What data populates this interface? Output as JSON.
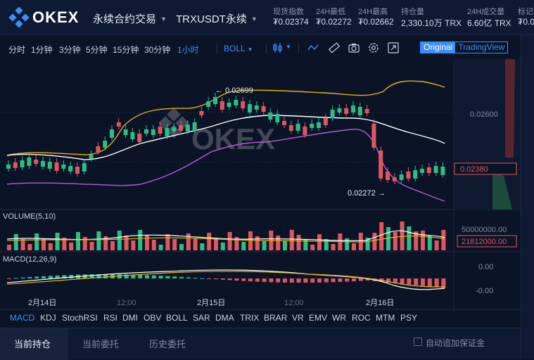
{
  "header": {
    "brand": "OKEX",
    "market_type": "永续合约交易",
    "pair": "TRXUSDT永续",
    "stats": [
      {
        "label": "现货指数",
        "value": "₮0.02374"
      },
      {
        "label": "24H最低",
        "value": "₮0.02272"
      },
      {
        "label": "24H最高",
        "value": "₮0.02662"
      },
      {
        "label": "持仓量",
        "value": "2,330.10万 TRX"
      },
      {
        "label": "24H成交量",
        "value": "6.60亿 TRX"
      },
      {
        "label": "标记",
        "value": "₮0.0"
      }
    ]
  },
  "toolbar": {
    "timeframes": [
      "分时",
      "1分钟",
      "3分钟",
      "5分钟",
      "15分钟",
      "30分钟",
      "1小时"
    ],
    "active_timeframe": "1小时",
    "indicator": "BOLL",
    "icons": [
      "candle-type-icon",
      "line-draw-icon",
      "ruler-icon",
      "camera-icon",
      "settings-icon",
      "fullscreen-icon"
    ],
    "view_original": "Original",
    "view_tradingview": "TradingView"
  },
  "chart": {
    "watermark": "OKEX",
    "price_labels": [
      "0.02600"
    ],
    "current_price": "0.02380",
    "high_marker": "0.02699",
    "low_marker": "0.02272",
    "volume_title": "VOLUME(5,10)",
    "volume_scale": "50000000.00",
    "volume_current": "21812000.00",
    "macd_title": "MACD(12,26,9)",
    "macd_top": "0.00",
    "macd_bottom": "-0.00",
    "x_labels": [
      "2月14日",
      "12:00",
      "2月15日",
      "12:00",
      "2月16日"
    ]
  },
  "indicator_tabs": [
    "MACD",
    "KDJ",
    "StochRSI",
    "RSI",
    "DMI",
    "OBV",
    "BOLL",
    "SAR",
    "DMA",
    "TRIX",
    "BRAR",
    "VR",
    "EMV",
    "WR",
    "ROC",
    "MTM",
    "PSY"
  ],
  "active_indicator": "MACD",
  "bottom_tabs": [
    "当前持仓",
    "当前委托",
    "历史委托"
  ],
  "auto_margin": "自动追加保证金",
  "colors": {
    "up": "#2ebd85",
    "down": "#e0565f",
    "accent": "#3a8ef5",
    "boll_upper": "#e3b30e",
    "boll_mid": "#ffffff",
    "boll_lower": "#b45ad6"
  }
}
